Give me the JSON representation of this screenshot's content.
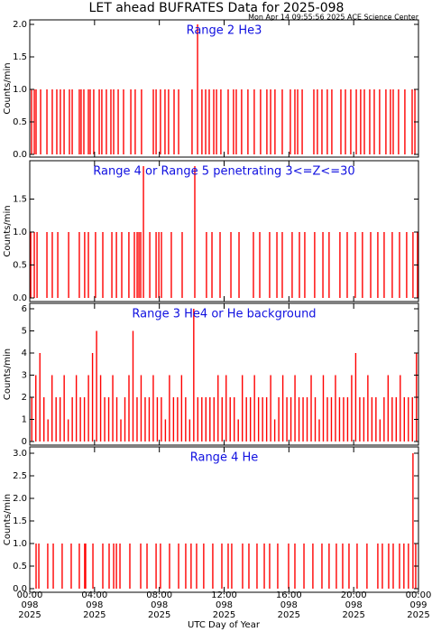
{
  "title": "LET ahead BUFRATES Data for 2025-098",
  "subtitle": "Mon Apr 14 09:55:56 2025 ACE Science Center",
  "xlabel": "UTC Day of Year",
  "xlim": [
    0,
    24
  ],
  "xticks": [
    {
      "value": 0,
      "label": "00:00 098 2025"
    },
    {
      "value": 4,
      "label": "04:00 098 2025"
    },
    {
      "value": 8,
      "label": "08:00 098 2025"
    },
    {
      "value": 12,
      "label": "12:00 098 2025"
    },
    {
      "value": 16,
      "label": "16:00 098 2025"
    },
    {
      "value": 20,
      "label": "20:00 098 2025"
    },
    {
      "value": 24,
      "label": "00:00 099 2025"
    }
  ],
  "chart_data": [
    {
      "type": "spike",
      "title": "Range 2 He3",
      "ylabel": "Counts/min",
      "color": "#ff0000",
      "ylim": [
        0,
        2
      ],
      "yticks": [
        {
          "value": 0,
          "label": "0.0"
        },
        {
          "value": 0.5,
          "label": "0.5"
        },
        {
          "value": 1,
          "label": "1.0"
        },
        {
          "value": 1.5,
          "label": "1.5"
        },
        {
          "value": 2,
          "label": "2.0"
        }
      ],
      "x": [
        0.11,
        0.28,
        0.39,
        0.67,
        1.06,
        1.39,
        1.67,
        1.89,
        2.12,
        2.45,
        2.62,
        3.06,
        3.17,
        3.34,
        3.62,
        3.73,
        3.95,
        4.29,
        4.45,
        4.73,
        5.01,
        5.18,
        5.46,
        5.79,
        6.24,
        6.51,
        6.9,
        7.63,
        7.8,
        8.07,
        8.35,
        8.57,
        8.91,
        9.19,
        10.02,
        10.36,
        10.63,
        10.86,
        11.08,
        11.36,
        11.53,
        11.8,
        12.25,
        12.58,
        12.75,
        13.08,
        13.47,
        13.86,
        14.25,
        14.64,
        14.87,
        15.14,
        15.59,
        16.09,
        16.37,
        16.54,
        16.82,
        17.54,
        17.76,
        18.04,
        18.37,
        18.65,
        19.21,
        19.49,
        19.82,
        20.16,
        20.43,
        20.66,
        20.99,
        21.27,
        21.6,
        21.99,
        22.27,
        22.44,
        22.77,
        23.16,
        23.61,
        23.78
      ],
      "values": [
        1,
        1,
        1,
        1,
        1,
        1,
        1,
        1,
        1,
        1,
        1,
        1,
        1,
        1,
        1,
        1,
        1,
        1,
        1,
        1,
        1,
        1,
        1,
        1,
        1,
        1,
        1,
        1,
        1,
        1,
        1,
        1,
        1,
        1,
        1,
        2,
        1,
        1,
        1,
        1,
        1,
        1,
        1,
        1,
        1,
        1,
        1,
        1,
        1,
        1,
        1,
        1,
        1,
        1,
        1,
        1,
        1,
        1,
        1,
        1,
        1,
        1,
        1,
        1,
        1,
        1,
        1,
        1,
        1,
        1,
        1,
        1,
        1,
        1,
        1,
        1,
        1,
        1
      ]
    },
    {
      "type": "spike",
      "title": "Range 4 or Range 5 penetrating 3<=Z<=30",
      "ylabel": "Counts/min",
      "color": "#ff0000",
      "ylim": [
        0,
        2
      ],
      "yticks": [
        {
          "value": 0,
          "label": "0.0"
        },
        {
          "value": 0.5,
          "label": "0.5"
        },
        {
          "value": 1,
          "label": "1.0"
        },
        {
          "value": 1.5,
          "label": "1.5"
        }
      ],
      "x": [
        0.06,
        0.28,
        0.45,
        1.06,
        1.39,
        1.73,
        2.4,
        3.06,
        3.39,
        3.62,
        4.06,
        4.51,
        5.07,
        5.35,
        5.68,
        6.12,
        6.46,
        6.63,
        6.74,
        6.85,
        7.02,
        7.41,
        7.8,
        7.97,
        8.13,
        8.74,
        9.41,
        10.19,
        10.91,
        11.25,
        11.75,
        12.42,
        12.92,
        13.81,
        14.2,
        14.81,
        15.26,
        15.59,
        16.2,
        16.65,
        16.98,
        17.59,
        18.1,
        18.48,
        19.15,
        19.6,
        20.1,
        20.54,
        21.05,
        21.49,
        21.88,
        22.38,
        22.83,
        23.27,
        23.66,
        23.94
      ],
      "values": [
        1,
        1,
        1,
        1,
        1,
        1,
        1,
        1,
        1,
        1,
        1,
        1,
        1,
        1,
        1,
        1,
        1,
        1,
        1,
        1,
        2,
        1,
        1,
        1,
        1,
        1,
        1,
        2,
        1,
        1,
        1,
        1,
        1,
        1,
        1,
        1,
        1,
        1,
        1,
        1,
        1,
        1,
        1,
        1,
        1,
        1,
        1,
        1,
        1,
        1,
        1,
        1,
        1,
        1,
        1,
        1
      ]
    },
    {
      "type": "spike",
      "title": "Range 3 He4 or He background",
      "ylabel": "Counts/min",
      "color": "#ff0000",
      "ylim": [
        0,
        6
      ],
      "yticks": [
        0,
        1,
        2,
        3,
        4,
        5,
        6
      ],
      "x": [
        0.125,
        0.375,
        0.625,
        0.875,
        1.125,
        1.375,
        1.625,
        1.875,
        2.125,
        2.375,
        2.625,
        2.875,
        3.125,
        3.375,
        3.625,
        3.875,
        4.125,
        4.375,
        4.625,
        4.875,
        5.125,
        5.375,
        5.625,
        5.875,
        6.125,
        6.375,
        6.625,
        6.875,
        7.125,
        7.375,
        7.625,
        7.875,
        8.125,
        8.375,
        8.625,
        8.875,
        9.125,
        9.375,
        9.625,
        9.875,
        10.125,
        10.375,
        10.625,
        10.875,
        11.125,
        11.375,
        11.625,
        11.875,
        12.125,
        12.375,
        12.625,
        12.875,
        13.125,
        13.375,
        13.625,
        13.875,
        14.125,
        14.375,
        14.625,
        14.875,
        15.125,
        15.375,
        15.625,
        15.875,
        16.125,
        16.375,
        16.625,
        16.875,
        17.125,
        17.375,
        17.625,
        17.875,
        18.125,
        18.375,
        18.625,
        18.875,
        19.125,
        19.375,
        19.625,
        19.875,
        20.125,
        20.375,
        20.625,
        20.875,
        21.125,
        21.375,
        21.625,
        21.875,
        22.125,
        22.375,
        22.625,
        22.875,
        23.125,
        23.375,
        23.625,
        23.875
      ],
      "values": [
        2,
        3,
        4,
        2,
        1,
        3,
        2,
        2,
        3,
        1,
        2,
        3,
        2,
        2,
        3,
        4,
        5,
        3,
        2,
        2,
        3,
        2,
        1,
        2,
        3,
        5,
        2,
        3,
        2,
        2,
        3,
        2,
        2,
        1,
        3,
        2,
        2,
        3,
        2,
        1,
        6,
        2,
        2,
        2,
        2,
        2,
        3,
        2,
        3,
        2,
        2,
        1,
        3,
        2,
        2,
        3,
        2,
        2,
        2,
        3,
        1,
        2,
        3,
        2,
        2,
        3,
        2,
        2,
        2,
        3,
        2,
        1,
        3,
        2,
        2,
        3,
        2,
        2,
        2,
        3,
        4,
        2,
        2,
        3,
        2,
        2,
        1,
        2,
        3,
        2,
        2,
        3,
        2,
        2,
        2,
        4
      ]
    },
    {
      "type": "spike",
      "title": "Range 4 He",
      "ylabel": "Counts/min",
      "color": "#ff0000",
      "ylim": [
        0,
        3
      ],
      "yticks": [
        {
          "value": 0,
          "label": "0.0"
        },
        {
          "value": 0.5,
          "label": "0.5"
        },
        {
          "value": 1,
          "label": "1.0"
        },
        {
          "value": 1.5,
          "label": "1.5"
        },
        {
          "value": 2,
          "label": "2.0"
        },
        {
          "value": 2.5,
          "label": "2.5"
        },
        {
          "value": 3,
          "label": "3.0"
        }
      ],
      "x": [
        0.39,
        0.56,
        1.11,
        1.45,
        2.0,
        2.56,
        3.06,
        3.39,
        3.45,
        3.9,
        4.51,
        4.9,
        5.18,
        5.35,
        5.57,
        6.18,
        6.85,
        7.24,
        7.8,
        8.07,
        8.63,
        9.19,
        9.63,
        9.96,
        10.3,
        10.74,
        11.3,
        11.86,
        12.25,
        12.47,
        13.14,
        13.53,
        14.03,
        14.48,
        14.81,
        15.31,
        15.98,
        16.37,
        16.93,
        17.48,
        18.04,
        18.48,
        18.93,
        19.32,
        19.71,
        20.21,
        20.82,
        21.49,
        21.77,
        22.16,
        22.44,
        22.83,
        23.1,
        23.38,
        23.66,
        23.83
      ],
      "values": [
        1,
        1,
        1,
        1,
        1,
        1,
        1,
        1,
        1,
        1,
        1,
        1,
        1,
        1,
        1,
        1,
        1,
        1,
        1,
        1,
        1,
        1,
        1,
        1,
        1,
        1,
        1,
        1,
        1,
        1,
        1,
        1,
        1,
        1,
        1,
        1,
        1,
        1,
        1,
        1,
        1,
        1,
        1,
        1,
        1,
        1,
        1,
        1,
        1,
        1,
        1,
        1,
        1,
        1,
        3,
        1
      ]
    }
  ]
}
